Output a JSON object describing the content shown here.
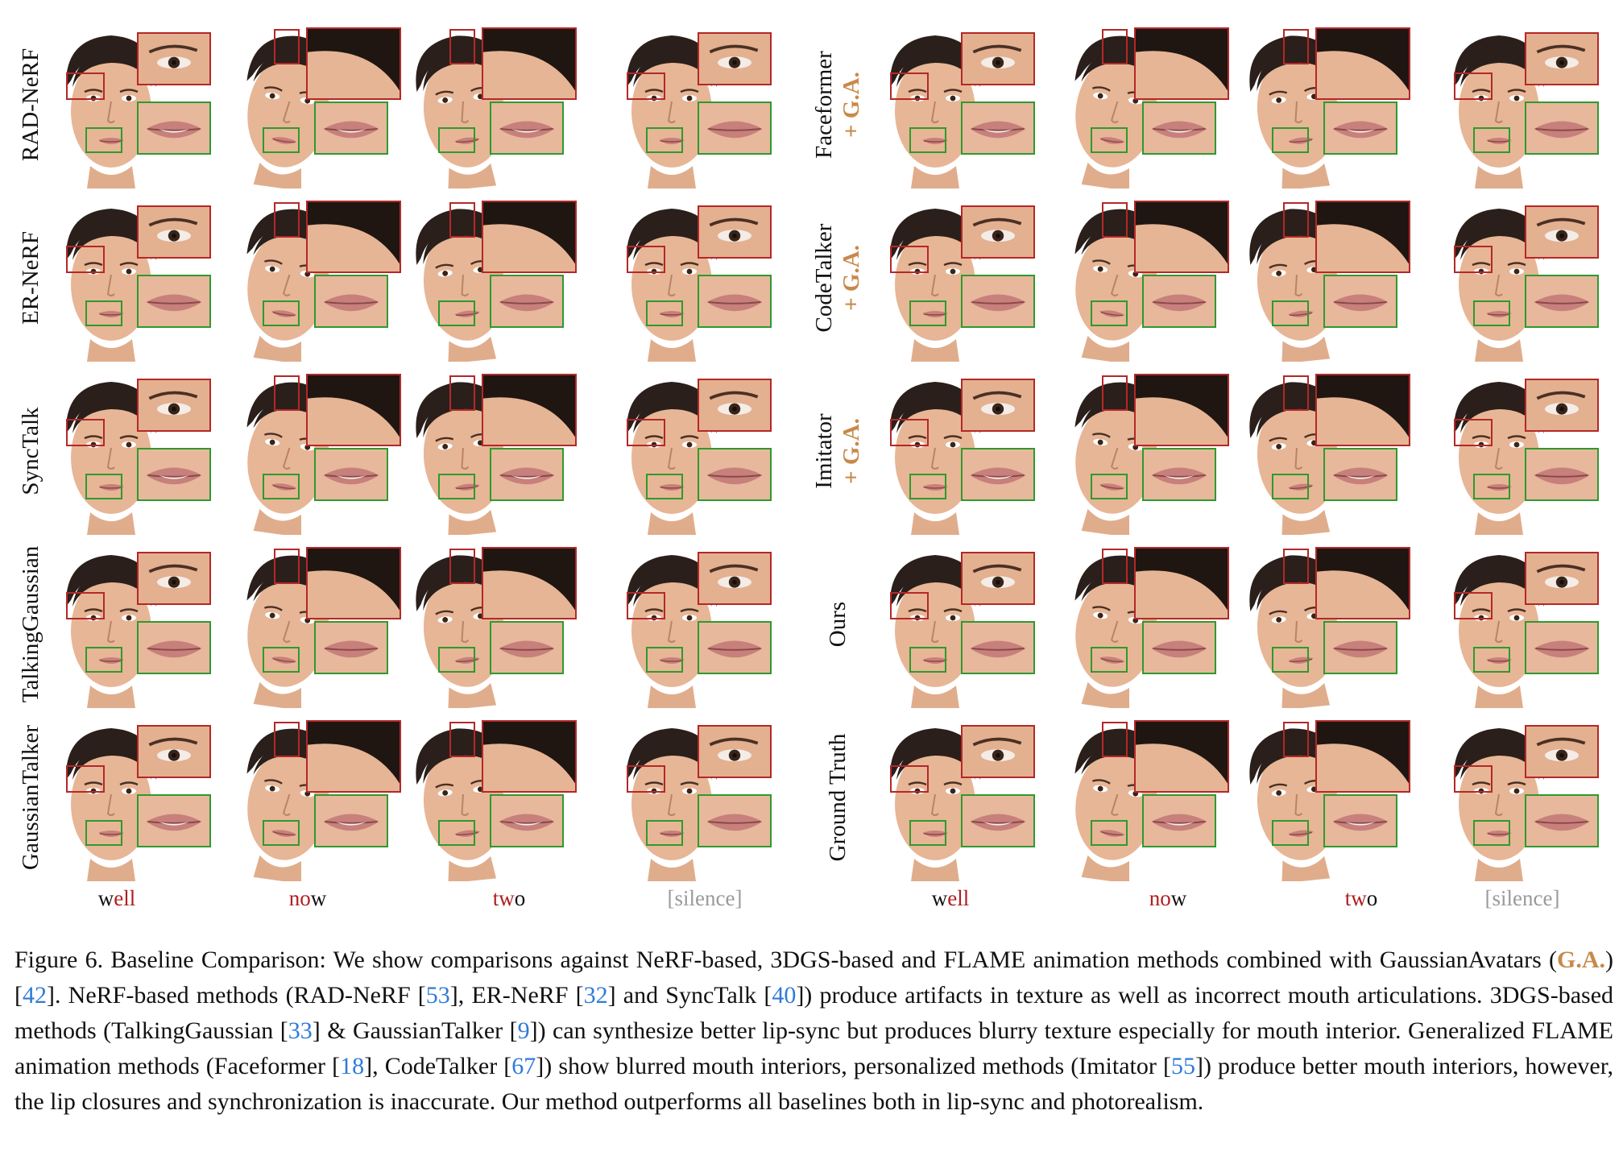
{
  "left_rows": [
    {
      "label": "RAD-NeRF",
      "ga": ""
    },
    {
      "label": "ER-NeRF",
      "ga": ""
    },
    {
      "label": "SyncTalk",
      "ga": ""
    },
    {
      "label": "TalkingGaussian",
      "ga": ""
    },
    {
      "label": "GaussianTalker",
      "ga": ""
    }
  ],
  "right_rows": [
    {
      "label": "Faceformer",
      "ga": "+ G.A."
    },
    {
      "label": "CodeTalker",
      "ga": "+ G.A."
    },
    {
      "label": "Imitator",
      "ga": "+ G.A."
    },
    {
      "label": "Ours",
      "ga": ""
    },
    {
      "label": "Ground Truth",
      "ga": ""
    }
  ],
  "words": [
    {
      "pre": "w",
      "hl": "ell",
      "post": "",
      "silence": false
    },
    {
      "pre": "",
      "hl": "no",
      "post": "w",
      "silence": false
    },
    {
      "pre": "",
      "hl": "tw",
      "post": "o",
      "silence": false
    },
    {
      "pre": "[silence]",
      "hl": "",
      "post": "",
      "silence": true
    }
  ],
  "caption": {
    "p1": "Figure 6. Baseline Comparison: We show comparisons against NeRF-based, 3DGS-based and FLAME animation methods combined with GaussianAvatars (",
    "ga": "G.A.",
    "p2": ") [",
    "r42": "42",
    "p3": "]. NeRF-based methods (RAD-NeRF [",
    "r53": "53",
    "p4": "], ER-NeRF [",
    "r32": "32",
    "p5": "] and SyncTalk [",
    "r40": "40",
    "p6": "]) produce artifacts in texture as well as incorrect mouth articulations. 3DGS-based methods (TalkingGaussian [",
    "r33": "33",
    "p7": "] & GaussianTalker [",
    "r9": "9",
    "p8": "]) can synthesize better lip-sync but produces blurry texture especially for mouth interior. Generalized FLAME animation methods (Faceformer [",
    "r18": "18",
    "p9": "], CodeTalker [",
    "r67": "67",
    "p10": "]) show blurred mouth interiors, personalized methods (Imitator [",
    "r55": "55",
    "p11": "]) produce better mouth interiors, however, the lip closures and synchronization is inaccurate. Our method outperforms all baselines both in lip-sync and photorealism."
  },
  "colors": {
    "eye_box": "#b42828",
    "mouth_box": "#2e9a2e",
    "ga": "#c8894a",
    "ref": "#2f7bd8"
  }
}
